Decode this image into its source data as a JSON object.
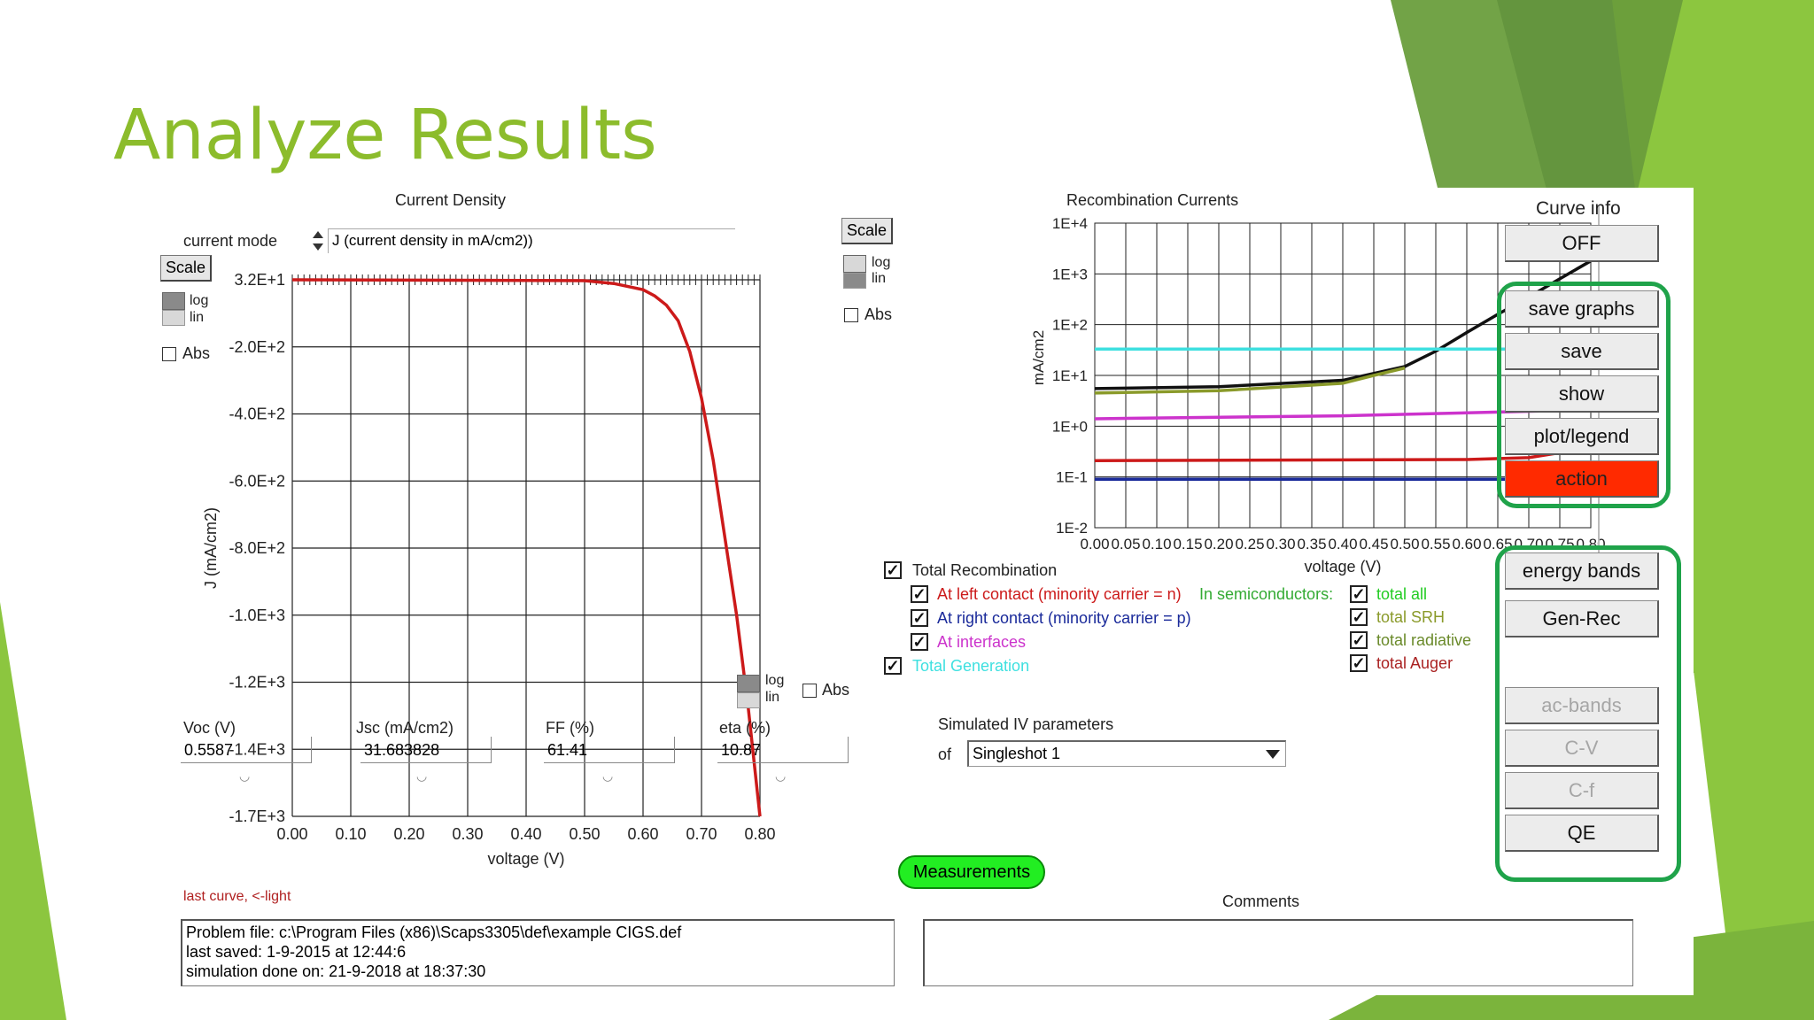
{
  "slide": {
    "title": "Analyze Results"
  },
  "left_panel": {
    "title": "Current Density",
    "current_mode_label": "current mode",
    "current_mode_value": "J (current density in mA/cm2))",
    "scale_label": "Scale",
    "log_label": "log",
    "lin_label": "lin",
    "abs_label": "Abs",
    "bottom_log_label": "log",
    "bottom_lin_label": "lin",
    "bottom_abs_label": "Abs",
    "params": [
      {
        "label": "Voc (V)",
        "value": "0.5587"
      },
      {
        "label": "Jsc (mA/cm2)",
        "value": "31.683828"
      },
      {
        "label": "FF  (%)",
        "value": "61.41"
      },
      {
        "label": "eta (%)",
        "value": "10.87"
      }
    ],
    "last_curve": "last curve, <-light",
    "problem_lines": [
      "Problem file: c:\\Program Files (x86)\\Scaps3305\\def\\example CIGS.def",
      "last saved: 1-9-2015 at 12:44:6",
      "simulation done on: 21-9-2018 at 18:37:30"
    ]
  },
  "right_panel": {
    "title": "Recombination Currents",
    "scale_label": "Scale",
    "log_label": "log",
    "lin_label": "lin",
    "abs_label": "Abs",
    "total_recombination": "Total Recombination",
    "left_contact": "At left contact (minority carrier = n)",
    "right_contact": "At right contact (minority carrier = p)",
    "interfaces": "At interfaces",
    "total_generation": "Total Generation",
    "in_semiconductors": "In semiconductors:",
    "total_all": "total all",
    "total_srh": "total SRH",
    "total_radiative": "total radiative",
    "total_auger": "total Auger",
    "sim_params_label": "Simulated IV parameters",
    "of_label": "of",
    "sim_select": "Singleshot 1",
    "measurements": "Measurements",
    "comments": "Comments"
  },
  "side_buttons": {
    "curve_info": "Curve info",
    "off": "OFF",
    "save_graphs": "save graphs",
    "save": "save",
    "show": "show",
    "plot_legend": "plot/legend",
    "action": "action",
    "energy_bands": "energy bands",
    "gen_rec": "Gen-Rec",
    "ac_bands": "ac-bands",
    "c_v": "C-V",
    "c_f": "C-f",
    "qe": "QE"
  },
  "colors": {
    "title_green": "#8cbc2c",
    "jv_curve": "#cc1a1a",
    "action_red": "#ff2a00",
    "box_green": "#1fa34a",
    "measure_green": "#22ee22"
  },
  "chart_data": [
    {
      "type": "line",
      "title": "Current Density",
      "xlabel": "voltage (V)",
      "ylabel": "J (mA/cm2)",
      "xlim": [
        0,
        0.8
      ],
      "ylim": [
        -1700,
        32
      ],
      "xticks": [
        "0.00",
        "0.10",
        "0.20",
        "0.30",
        "0.40",
        "0.50",
        "0.60",
        "0.70",
        "0.80"
      ],
      "yticks": [
        "3.2E+1",
        "-2.0E+2",
        "-4.0E+2",
        "-6.0E+2",
        "-8.0E+2",
        "-1.0E+3",
        "-1.2E+3",
        "-1.4E+3",
        "-1.7E+3"
      ],
      "grid": true,
      "series": [
        {
          "x": [
            0.0,
            0.2,
            0.4,
            0.5,
            0.55,
            0.6,
            0.62,
            0.64,
            0.66,
            0.68,
            0.7,
            0.72,
            0.74,
            0.76,
            0.78,
            0.8
          ],
          "y": [
            32,
            31,
            30,
            29,
            20,
            0,
            -20,
            -50,
            -100,
            -200,
            -350,
            -550,
            -800,
            -1050,
            -1350,
            -1700
          ]
        }
      ]
    },
    {
      "type": "line",
      "title": "Recombination Currents",
      "xlabel": "voltage (V)",
      "ylabel": "mA/cm2",
      "scale": "log",
      "xlim": [
        0,
        0.8
      ],
      "ylim": [
        0.01,
        10000
      ],
      "xticks": [
        "0.00",
        "0.05",
        "0.10",
        "0.15",
        "0.20",
        "0.25",
        "0.30",
        "0.35",
        "0.40",
        "0.45",
        "0.50",
        "0.55",
        "0.60",
        "0.65",
        "0.70",
        "0.75",
        "0.80"
      ],
      "yticks": [
        "1E+4",
        "1E+3",
        "1E+2",
        "1E+1",
        "1E+0",
        "1E-1",
        "1E-2"
      ],
      "grid": true,
      "series": [
        {
          "name": "total all",
          "color": "#111111",
          "x": [
            0,
            0.2,
            0.4,
            0.5,
            0.55,
            0.6,
            0.65,
            0.7,
            0.75,
            0.8
          ],
          "y": [
            5.5,
            6,
            8,
            15,
            30,
            70,
            160,
            350,
            800,
            1800
          ]
        },
        {
          "name": "total SRH",
          "color": "#8a9a2a",
          "x": [
            0,
            0.2,
            0.4,
            0.45,
            0.5
          ],
          "y": [
            4.5,
            5,
            7,
            10,
            14
          ]
        },
        {
          "name": "Total Generation",
          "color": "#3ee0e0",
          "x": [
            0,
            0.8
          ],
          "y": [
            33,
            33
          ]
        },
        {
          "name": "At interfaces",
          "color": "#cc33cc",
          "x": [
            0,
            0.4,
            0.8
          ],
          "y": [
            1.4,
            1.6,
            2.1
          ]
        },
        {
          "name": "At left contact (minority carrier = n)",
          "color": "#cc1a1a",
          "x": [
            0,
            0.6,
            0.7,
            0.75,
            0.8
          ],
          "y": [
            0.21,
            0.22,
            0.24,
            0.3,
            0.6
          ]
        },
        {
          "name": "At right contact (minority carrier = p)",
          "color": "#1a2a9a",
          "x": [
            0,
            0.8
          ],
          "y": [
            0.09,
            0.09
          ]
        }
      ]
    }
  ]
}
